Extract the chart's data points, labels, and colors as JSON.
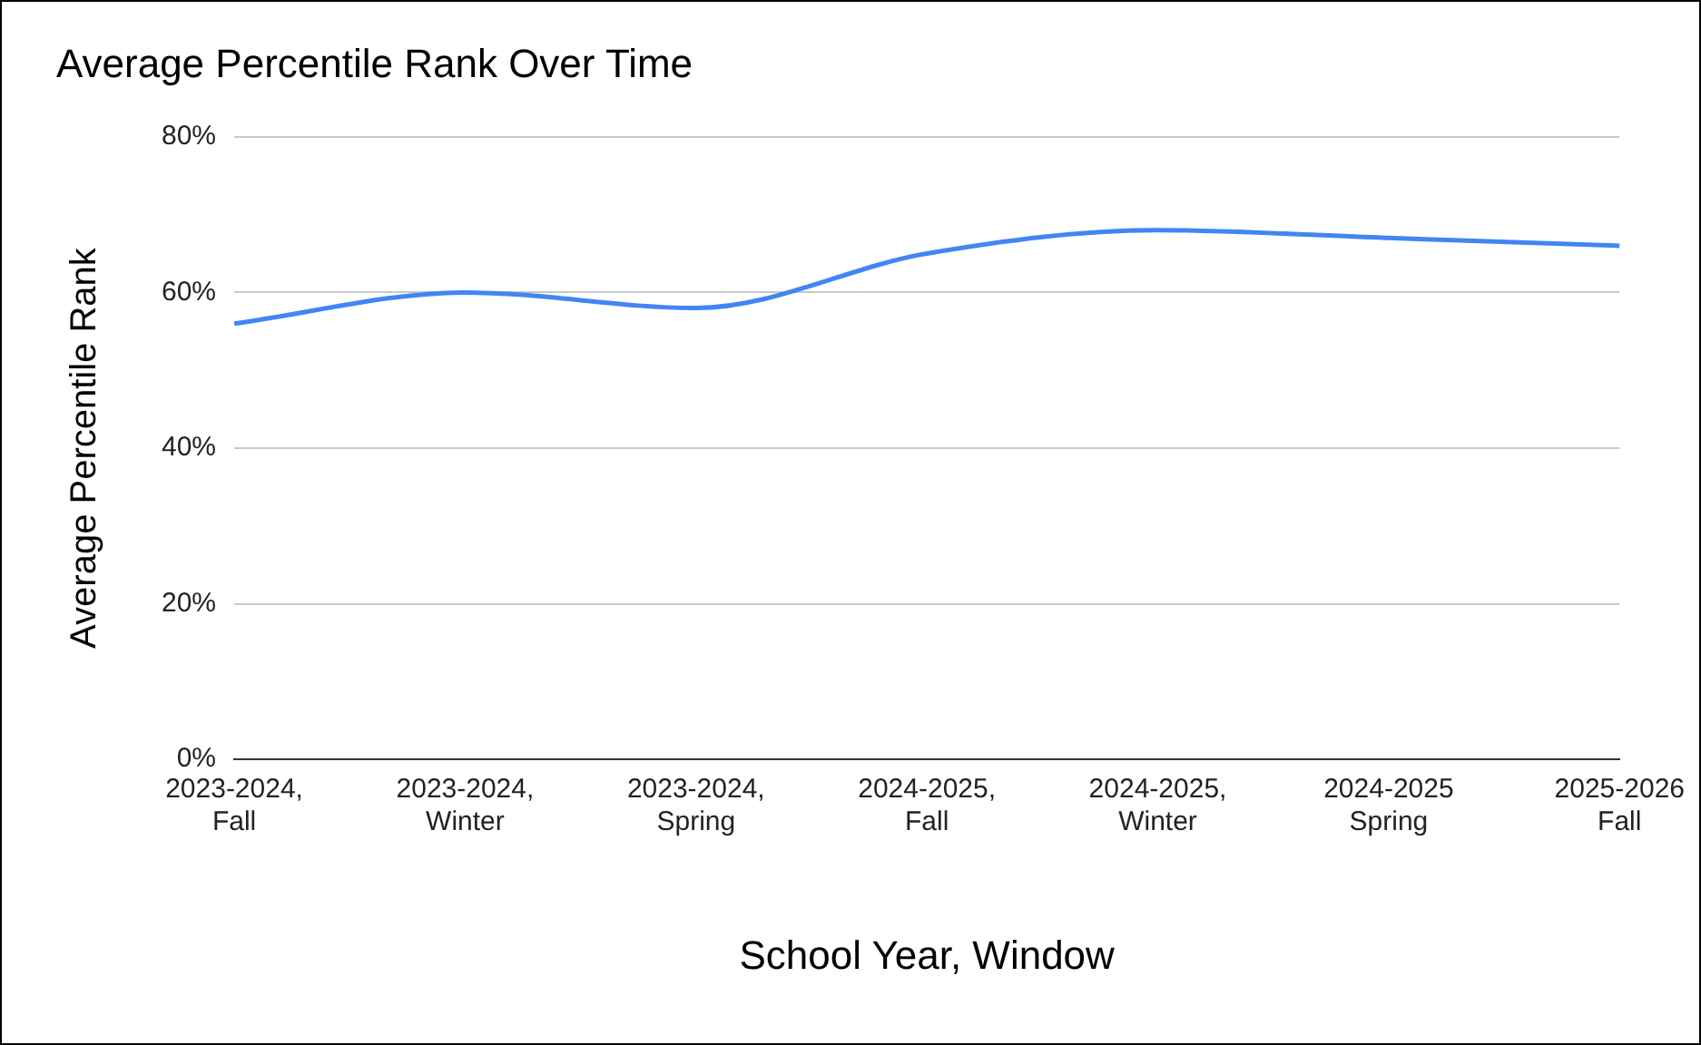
{
  "chart_data": {
    "type": "line",
    "title": "Average Percentile Rank Over Time",
    "xlabel": "School Year, Window",
    "ylabel": "Average Percentile Rank",
    "categories": [
      "2023-2024, Fall",
      "2023-2024, Winter",
      "2023-2024, Spring",
      "2024-2025, Fall",
      "2024-2025, Winter",
      "2024-2025 Spring",
      "2025-2026 Fall"
    ],
    "series": [
      {
        "color": "#4285f4",
        "values": [
          56,
          60,
          58,
          65,
          68,
          67,
          66
        ]
      }
    ],
    "ylim": [
      0,
      80
    ],
    "yticks": [
      {
        "value": 0,
        "label": "0%"
      },
      {
        "value": 20,
        "label": "20%"
      },
      {
        "value": 40,
        "label": "40%"
      },
      {
        "value": 60,
        "label": "60%"
      },
      {
        "value": 80,
        "label": "80%"
      }
    ],
    "grid": "y",
    "legend": false,
    "marker": "none",
    "line_style": "solid"
  }
}
